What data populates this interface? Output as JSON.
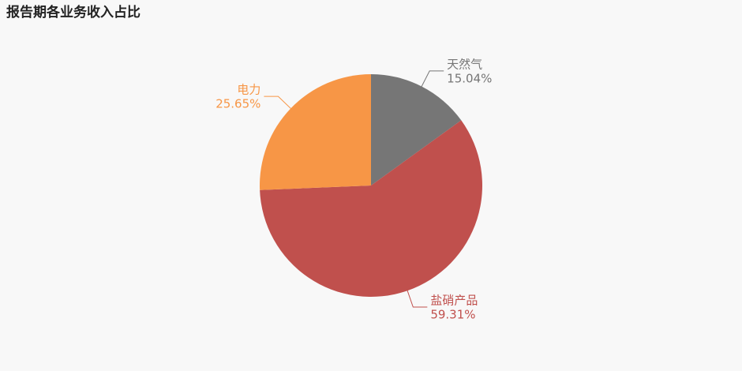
{
  "chart_data": {
    "type": "pie",
    "title": "报告期各业务收入占比",
    "categories": [
      "天然气",
      "盐硝产品",
      "电力"
    ],
    "values": [
      15.04,
      59.31,
      25.65
    ],
    "value_labels": [
      "15.04%",
      "59.31%",
      "25.65%"
    ],
    "colors": [
      "#767676",
      "#c0504d",
      "#f79646"
    ]
  }
}
